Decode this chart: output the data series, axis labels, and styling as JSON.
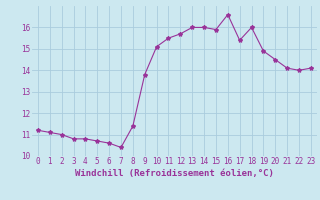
{
  "x": [
    0,
    1,
    2,
    3,
    4,
    5,
    6,
    7,
    8,
    9,
    10,
    11,
    12,
    13,
    14,
    15,
    16,
    17,
    18,
    19,
    20,
    21,
    22,
    23
  ],
  "y": [
    11.2,
    11.1,
    11.0,
    10.8,
    10.8,
    10.7,
    10.6,
    10.4,
    11.4,
    13.8,
    15.1,
    15.5,
    15.7,
    16.0,
    16.0,
    15.9,
    16.6,
    15.4,
    16.0,
    14.9,
    14.5,
    14.1,
    14.0,
    14.1
  ],
  "line_color": "#993399",
  "marker": "*",
  "marker_size": 3,
  "bg_color": "#cce8f0",
  "grid_color": "#aaccdd",
  "xlabel": "Windchill (Refroidissement éolien,°C)",
  "xlabel_color": "#993399",
  "tick_color": "#993399",
  "ylim": [
    10,
    17
  ],
  "yticks": [
    10,
    11,
    12,
    13,
    14,
    15,
    16
  ],
  "xticks": [
    0,
    1,
    2,
    3,
    4,
    5,
    6,
    7,
    8,
    9,
    10,
    11,
    12,
    13,
    14,
    15,
    16,
    17,
    18,
    19,
    20,
    21,
    22,
    23
  ],
  "tick_fontsize": 5.5,
  "xlabel_fontsize": 6.5
}
